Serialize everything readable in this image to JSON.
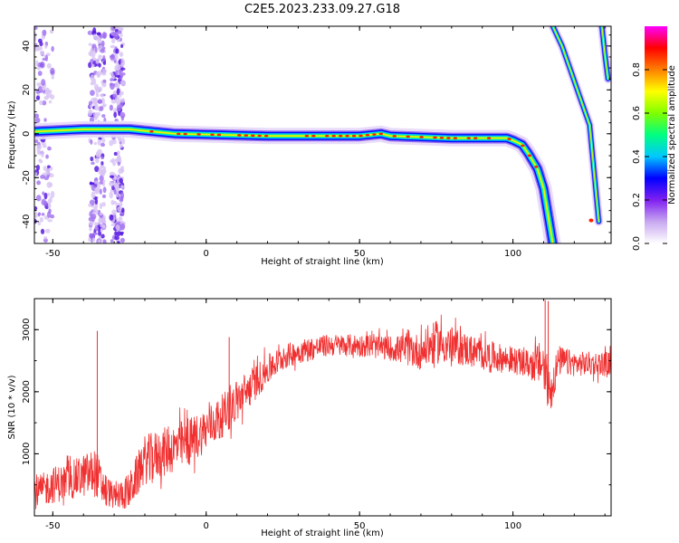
{
  "title": "C2E5.2023.233.09.27.G18",
  "chart_data": [
    {
      "type": "heatmap",
      "xlabel": "Height of straight line (km)",
      "ylabel": "Frequency (Hz)",
      "xlim": [
        -56,
        132
      ],
      "ylim": [
        -50,
        49
      ],
      "xticks": [
        -50,
        0,
        50,
        100
      ],
      "yticks": [
        -40,
        -20,
        0,
        20,
        40
      ],
      "colorbar": {
        "label": "Normalized spectral amplitude",
        "range": [
          0.0,
          1.0
        ],
        "ticks": [
          "0.0",
          "0.2",
          "0.4",
          "0.6",
          "0.8"
        ],
        "colors": [
          "#ffffff",
          "#c8a8f0",
          "#8020f0",
          "#0000ff",
          "#00c8ff",
          "#00ff80",
          "#80ff00",
          "#ffff00",
          "#ff8000",
          "#ff0000",
          "#ff00ff"
        ]
      },
      "tracks": [
        {
          "x": [
            -56,
            -40,
            -30,
            -25,
            -10,
            20,
            50,
            57,
            60,
            80,
            98,
            100,
            103,
            105,
            108,
            110,
            113
          ],
          "y": [
            1,
            2,
            2,
            2,
            0,
            -1,
            -1,
            0,
            -1,
            -2,
            -2,
            -3,
            -5,
            -9,
            -16,
            -25,
            -50
          ]
        },
        {
          "x": [
            113,
            116,
            119,
            122,
            125,
            128
          ],
          "y": [
            49,
            40,
            28,
            16,
            4,
            -40
          ]
        },
        {
          "x": [
            129,
            130,
            131
          ],
          "y": [
            49,
            36,
            25
          ]
        }
      ],
      "noise_bands": [
        [
          -56,
          -50
        ],
        [
          -38,
          -33
        ],
        [
          -31,
          -27
        ]
      ]
    },
    {
      "type": "line",
      "xlabel": "Height of straight line (km)",
      "ylabel": "SNR (10 * v/v)",
      "xlim": [
        -56,
        132
      ],
      "ylim": [
        0,
        3500
      ],
      "xticks": [
        -50,
        0,
        50,
        100
      ],
      "yticks": [
        1000,
        2000,
        3000
      ],
      "color": "#f03030",
      "envelope": {
        "x": [
          -56,
          -50,
          -45,
          -40,
          -36,
          -34,
          -30,
          -25,
          -20,
          -15,
          -10,
          -5,
          0,
          5,
          10,
          15,
          20,
          25,
          30,
          40,
          50,
          60,
          70,
          75,
          80,
          90,
          100,
          105,
          110,
          112,
          115,
          120,
          125,
          132
        ],
        "mean": [
          350,
          500,
          550,
          650,
          700,
          500,
          300,
          400,
          900,
          1000,
          1100,
          1200,
          1400,
          1600,
          1850,
          2100,
          2350,
          2550,
          2650,
          2750,
          2750,
          2700,
          2650,
          2800,
          2750,
          2600,
          2500,
          2450,
          2450,
          2000,
          2500,
          2450,
          2450,
          2450
        ],
        "spread": [
          250,
          300,
          300,
          350,
          400,
          300,
          200,
          300,
          400,
          400,
          400,
          400,
          350,
          350,
          350,
          300,
          250,
          200,
          200,
          180,
          180,
          200,
          300,
          350,
          300,
          250,
          220,
          220,
          400,
          400,
          250,
          200,
          200,
          200
        ]
      },
      "spikes": [
        {
          "x": -35.5,
          "y": 2980
        },
        {
          "x": 7.5,
          "y": 2880
        },
        {
          "x": 110.5,
          "y": 3480
        },
        {
          "x": 111.5,
          "y": 3460
        }
      ]
    }
  ]
}
